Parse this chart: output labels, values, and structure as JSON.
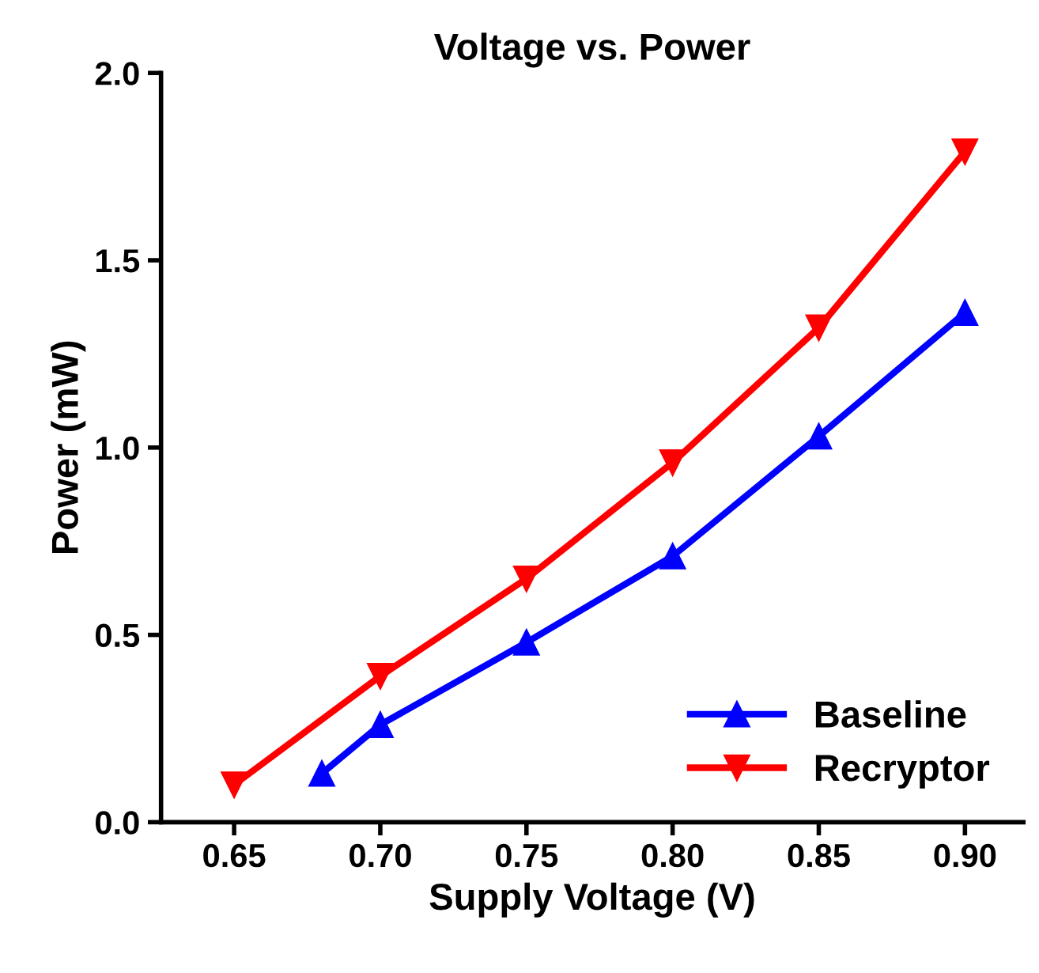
{
  "chart_data": {
    "type": "line",
    "title": "Voltage vs. Power",
    "xlabel": "Supply Voltage (V)",
    "ylabel": "Power (mW)",
    "xlim": [
      0.625,
      0.92
    ],
    "xticks": [
      {
        "value": 0.65,
        "label": "0.65"
      },
      {
        "value": 0.7,
        "label": "0.70"
      },
      {
        "value": 0.75,
        "label": "0.75"
      },
      {
        "value": 0.8,
        "label": "0.80"
      },
      {
        "value": 0.85,
        "label": "0.85"
      },
      {
        "value": 0.9,
        "label": "0.90"
      }
    ],
    "ylim": [
      0,
      2
    ],
    "yticks": [
      {
        "value": 0,
        "label": "0.0"
      },
      {
        "value": 0.5,
        "label": "0.5"
      },
      {
        "value": 1,
        "label": "1.0"
      },
      {
        "value": 1.5,
        "label": "1.5"
      },
      {
        "value": 2,
        "label": "2.0"
      }
    ],
    "grid": false,
    "legend": "bottom right",
    "line_style": "solid",
    "series": [
      {
        "name": "Baseline",
        "color": "#0000ff",
        "marker": "triangle",
        "x": [
          0.68,
          0.7,
          0.75,
          0.8,
          0.85,
          0.9
        ],
        "values": [
          0.13,
          0.26,
          0.48,
          0.71,
          1.03,
          1.36
        ]
      },
      {
        "name": "Recryptor",
        "color": "#ff0000",
        "marker": "triangle_down",
        "x": [
          0.65,
          0.7,
          0.75,
          0.8,
          0.85,
          0.9
        ],
        "values": [
          0.1,
          0.39,
          0.65,
          0.96,
          1.32,
          1.79
        ]
      }
    ]
  }
}
